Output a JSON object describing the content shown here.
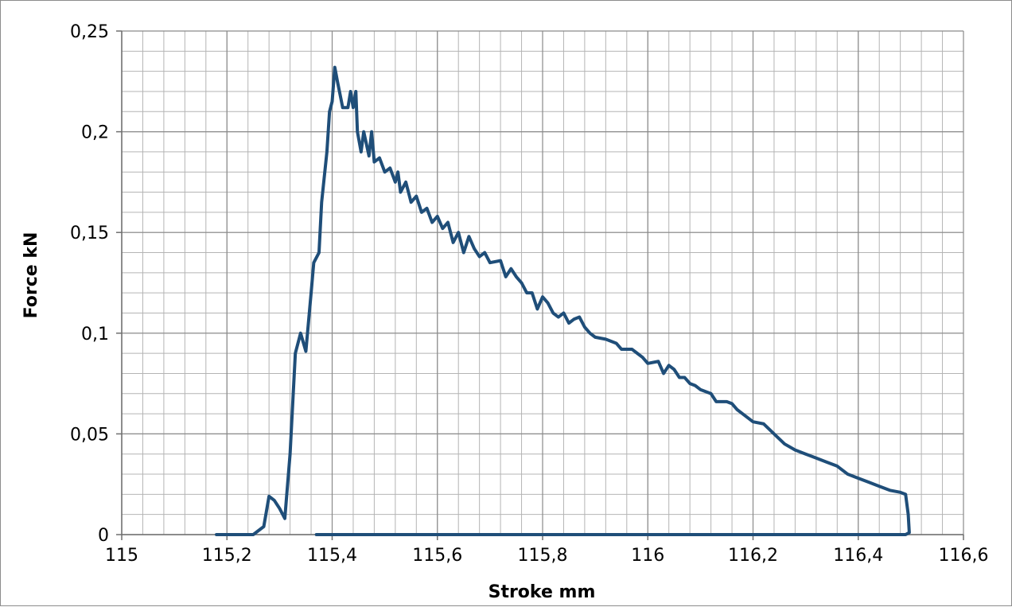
{
  "chart_data": {
    "type": "line",
    "title": "",
    "xlabel": "Stroke mm",
    "ylabel": "Force kN",
    "xlim": [
      115,
      116.6
    ],
    "ylim": [
      0,
      0.25
    ],
    "x_ticks": [
      115,
      115.2,
      115.4,
      115.6,
      115.8,
      116,
      116.2,
      116.4,
      116.6
    ],
    "x_tick_labels": [
      "115",
      "115,2",
      "115,4",
      "115,6",
      "115,8",
      "116",
      "116,2",
      "116,4",
      "116,6"
    ],
    "y_ticks": [
      0,
      0.05,
      0.1,
      0.15,
      0.2,
      0.25
    ],
    "y_tick_labels": [
      "0",
      "0,05",
      "0,1",
      "0,15",
      "0,2",
      "0,25"
    ],
    "grid": true,
    "minor_grid_x_step": 0.04,
    "minor_grid_y_step": 0.01,
    "line_color": "#1f4e79",
    "series": [
      {
        "points": [
          [
            115.18,
            0
          ],
          [
            115.25,
            0
          ],
          [
            115.27,
            0.004
          ],
          [
            115.28,
            0.019
          ],
          [
            115.29,
            0.017
          ],
          [
            115.3,
            0.013
          ],
          [
            115.31,
            0.008
          ],
          [
            115.32,
            0.04
          ],
          [
            115.33,
            0.09
          ],
          [
            115.34,
            0.1
          ],
          [
            115.35,
            0.091
          ],
          [
            115.36,
            0.12
          ],
          [
            115.365,
            0.135
          ],
          [
            115.375,
            0.14
          ],
          [
            115.38,
            0.165
          ],
          [
            115.39,
            0.19
          ],
          [
            115.395,
            0.21
          ],
          [
            115.4,
            0.215
          ],
          [
            115.405,
            0.232
          ],
          [
            115.41,
            0.225
          ],
          [
            115.42,
            0.212
          ],
          [
            115.43,
            0.212
          ],
          [
            115.435,
            0.22
          ],
          [
            115.44,
            0.212
          ],
          [
            115.445,
            0.22
          ],
          [
            115.448,
            0.2
          ],
          [
            115.455,
            0.19
          ],
          [
            115.46,
            0.2
          ],
          [
            115.47,
            0.188
          ],
          [
            115.475,
            0.2
          ],
          [
            115.48,
            0.185
          ],
          [
            115.49,
            0.187
          ],
          [
            115.5,
            0.18
          ],
          [
            115.51,
            0.182
          ],
          [
            115.52,
            0.175
          ],
          [
            115.525,
            0.18
          ],
          [
            115.53,
            0.17
          ],
          [
            115.54,
            0.175
          ],
          [
            115.55,
            0.165
          ],
          [
            115.56,
            0.168
          ],
          [
            115.57,
            0.16
          ],
          [
            115.58,
            0.162
          ],
          [
            115.59,
            0.155
          ],
          [
            115.6,
            0.158
          ],
          [
            115.61,
            0.152
          ],
          [
            115.62,
            0.155
          ],
          [
            115.63,
            0.145
          ],
          [
            115.64,
            0.15
          ],
          [
            115.65,
            0.14
          ],
          [
            115.66,
            0.148
          ],
          [
            115.67,
            0.142
          ],
          [
            115.68,
            0.138
          ],
          [
            115.69,
            0.14
          ],
          [
            115.7,
            0.135
          ],
          [
            115.72,
            0.136
          ],
          [
            115.73,
            0.128
          ],
          [
            115.74,
            0.132
          ],
          [
            115.75,
            0.128
          ],
          [
            115.76,
            0.125
          ],
          [
            115.77,
            0.12
          ],
          [
            115.78,
            0.12
          ],
          [
            115.79,
            0.112
          ],
          [
            115.8,
            0.118
          ],
          [
            115.81,
            0.115
          ],
          [
            115.82,
            0.11
          ],
          [
            115.83,
            0.108
          ],
          [
            115.84,
            0.11
          ],
          [
            115.85,
            0.105
          ],
          [
            115.86,
            0.107
          ],
          [
            115.87,
            0.108
          ],
          [
            115.88,
            0.103
          ],
          [
            115.89,
            0.1
          ],
          [
            115.9,
            0.098
          ],
          [
            115.92,
            0.097
          ],
          [
            115.94,
            0.095
          ],
          [
            115.95,
            0.092
          ],
          [
            115.97,
            0.092
          ],
          [
            115.98,
            0.09
          ],
          [
            115.99,
            0.088
          ],
          [
            116,
            0.085
          ],
          [
            116.02,
            0.086
          ],
          [
            116.03,
            0.08
          ],
          [
            116.04,
            0.084
          ],
          [
            116.05,
            0.082
          ],
          [
            116.06,
            0.078
          ],
          [
            116.07,
            0.078
          ],
          [
            116.08,
            0.075
          ],
          [
            116.09,
            0.074
          ],
          [
            116.1,
            0.072
          ],
          [
            116.12,
            0.07
          ],
          [
            116.13,
            0.066
          ],
          [
            116.15,
            0.066
          ],
          [
            116.16,
            0.065
          ],
          [
            116.17,
            0.062
          ],
          [
            116.18,
            0.06
          ],
          [
            116.2,
            0.056
          ],
          [
            116.22,
            0.055
          ],
          [
            116.24,
            0.05
          ],
          [
            116.26,
            0.045
          ],
          [
            116.28,
            0.042
          ],
          [
            116.3,
            0.04
          ],
          [
            116.32,
            0.038
          ],
          [
            116.34,
            0.036
          ],
          [
            116.36,
            0.034
          ],
          [
            116.38,
            0.03
          ],
          [
            116.4,
            0.028
          ],
          [
            116.42,
            0.026
          ],
          [
            116.44,
            0.024
          ],
          [
            116.46,
            0.022
          ],
          [
            116.48,
            0.021
          ],
          [
            116.49,
            0.02
          ],
          [
            116.495,
            0.01
          ],
          [
            116.497,
            0.001
          ],
          [
            116.49,
            0
          ],
          [
            115.37,
            0
          ]
        ]
      }
    ]
  }
}
